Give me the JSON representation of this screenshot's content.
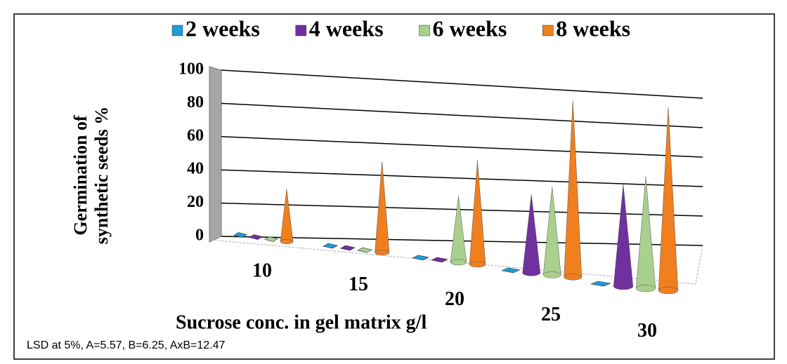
{
  "chart_data": {
    "type": "cone3d",
    "ylabel": "Germination of synthetic seeds %",
    "xlabel": "Sucrose  conc. in gel matrix  g/l",
    "note": "LSD at 5%, A=5.57, B=6.25, AxB=12.47",
    "categories": [
      "10",
      "15",
      "20",
      "25",
      "30"
    ],
    "series": [
      {
        "name": "2 weeks",
        "color": "#1f9bd7",
        "values": [
          0,
          0,
          0,
          0,
          0
        ]
      },
      {
        "name": "4 weeks",
        "color": "#7030a0",
        "values": [
          0,
          0,
          0,
          40,
          50
        ]
      },
      {
        "name": "6 weeks",
        "color": "#a9d08e",
        "values": [
          0,
          0,
          35,
          45,
          55
        ]
      },
      {
        "name": "8 weeks",
        "color": "#f07f1e",
        "values": [
          30,
          50,
          55,
          90,
          90
        ]
      }
    ],
    "ylim": [
      0,
      100
    ],
    "yticks": [
      0,
      20,
      40,
      60,
      80,
      100
    ],
    "grid": true
  }
}
